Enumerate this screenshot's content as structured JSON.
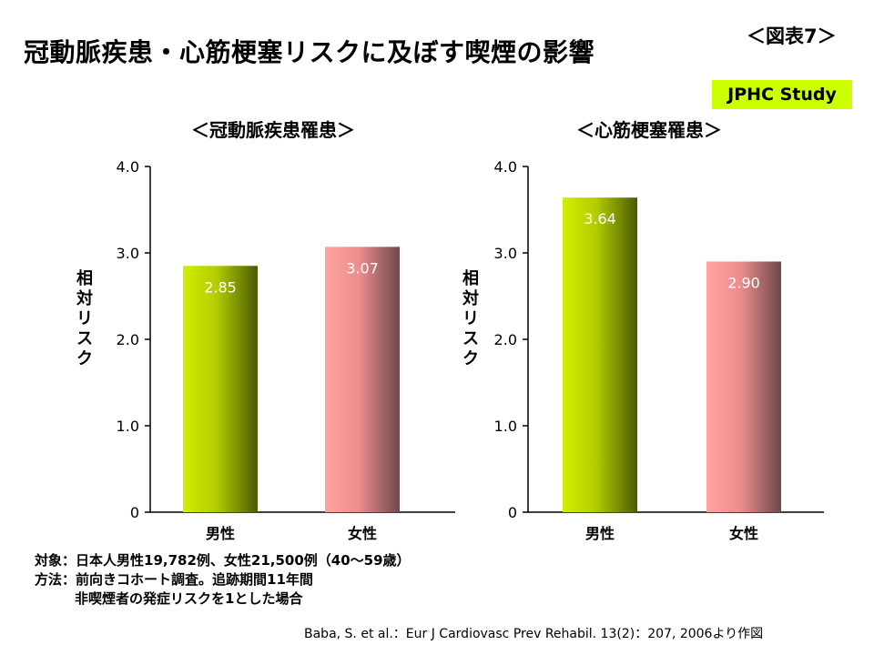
{
  "figure_label": "＜図表7＞",
  "title": "冠動脈疾患・心筋梗塞リスクに及ぼす喫煙の影響",
  "study_badge": "JPHC Study",
  "colors": {
    "male_bar": "#a9c400",
    "female_bar": "#f29494",
    "badge": "#ccff00"
  },
  "chart_data": [
    {
      "type": "bar",
      "title": "＜冠動脈疾患罹患＞",
      "ylabel": "相対リスク",
      "ylim": [
        0,
        4.0
      ],
      "yticks": [
        "0",
        "1.0",
        "2.0",
        "3.0",
        "4.0"
      ],
      "categories": [
        "男性",
        "女性"
      ],
      "values": [
        2.85,
        3.07
      ],
      "value_labels": [
        "2.85",
        "3.07"
      ],
      "grid": false
    },
    {
      "type": "bar",
      "title": "＜心筋梗塞罹患＞",
      "ylabel": "相対リスク",
      "ylim": [
        0,
        4.0
      ],
      "yticks": [
        "0",
        "1.0",
        "2.0",
        "3.0",
        "4.0"
      ],
      "categories": [
        "男性",
        "女性"
      ],
      "values": [
        3.64,
        2.9
      ],
      "value_labels": [
        "3.64",
        "2.90"
      ],
      "grid": false
    }
  ],
  "notes": {
    "target": "対象：日本人男性19,782例、女性21,500例（40～59歳）",
    "method": "方法：前向きコホート調査。追跡期間11年間",
    "method_detail": "非喫煙者の発症リスクを1とした場合"
  },
  "citation": "Baba, S. et al.：Eur J Cardiovasc Prev Rehabil. 13(2)：207, 2006より作図"
}
